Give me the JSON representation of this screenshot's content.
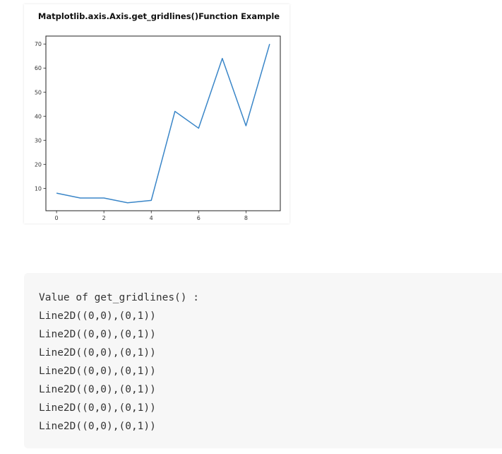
{
  "chart_data": {
    "type": "line",
    "title": "Matplotlib.axis.Axis.get_gridlines()Function Example",
    "xlabel": "",
    "ylabel": "",
    "x": [
      0,
      1,
      2,
      3,
      4,
      5,
      6,
      7,
      8,
      9
    ],
    "series": [
      {
        "values": [
          8,
          6,
          6,
          4,
          5,
          42,
          35,
          64,
          36,
          70
        ]
      }
    ],
    "xticks": [
      0,
      2,
      4,
      6,
      8
    ],
    "yticks": [
      10,
      20,
      30,
      40,
      50,
      60,
      70
    ],
    "xlim": [
      -0.45,
      9.45
    ],
    "ylim": [
      0.7,
      73.3
    ],
    "grid": false,
    "line_color": "#3a86c8"
  },
  "output": {
    "lines": [
      "Value of get_gridlines() :",
      "Line2D((0,0),(0,1))",
      "Line2D((0,0),(0,1))",
      "Line2D((0,0),(0,1))",
      "Line2D((0,0),(0,1))",
      "Line2D((0,0),(0,1))",
      "Line2D((0,0),(0,1))",
      "Line2D((0,0),(0,1))"
    ]
  }
}
